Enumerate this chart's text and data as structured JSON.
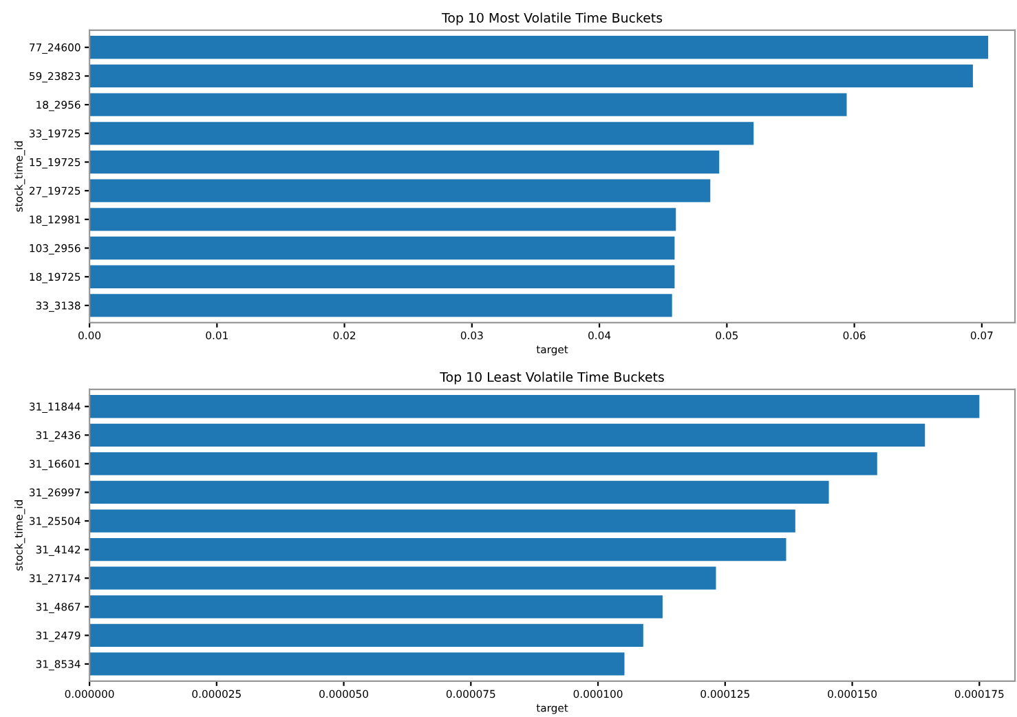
{
  "chart_data": [
    {
      "type": "bar",
      "orientation": "horizontal",
      "title": "Top 10 Most Volatile Time Buckets",
      "xlabel": "target",
      "ylabel": "stock_time_id",
      "categories": [
        "77_24600",
        "59_23823",
        "18_2956",
        "33_19725",
        "15_19725",
        "27_19725",
        "18_12981",
        "103_2956",
        "18_19725",
        "33_3138"
      ],
      "values": [
        0.0705,
        0.0693,
        0.0594,
        0.0521,
        0.0494,
        0.0487,
        0.046,
        0.0459,
        0.0459,
        0.0457
      ],
      "color": "#1f77b4",
      "xlim": [
        0,
        0.0726
      ],
      "xticks": [
        {
          "value": 0,
          "label": "0.00"
        },
        0.01,
        0.02,
        0.03,
        0.04,
        0.05,
        0.06,
        0.07
      ],
      "grid": false,
      "legend": false
    },
    {
      "type": "bar",
      "orientation": "horizontal",
      "title": "Top 10 Least Volatile Time Buckets",
      "xlabel": "target",
      "ylabel": "stock_time_id",
      "categories": [
        "31_11844",
        "31_2436",
        "31_16601",
        "31_26997",
        "31_25504",
        "31_4142",
        "31_27174",
        "31_4867",
        "31_2479",
        "31_8534"
      ],
      "values": [
        0.000175,
        0.0001643,
        0.0001549,
        0.0001454,
        0.0001388,
        0.000137,
        0.0001232,
        0.0001127,
        0.0001089,
        0.0001052
      ],
      "color": "#1f77b4",
      "xlim": [
        0,
        0.000182
      ],
      "xticks": [
        {
          "value": 0,
          "label": "0.000000"
        },
        {
          "value": 2.5e-05,
          "label": "0.000025"
        },
        {
          "value": 5e-05,
          "label": "0.000050"
        },
        {
          "value": 7.5e-05,
          "label": "0.000075"
        },
        {
          "value": 0.0001,
          "label": "0.000100"
        },
        {
          "value": 0.000125,
          "label": "0.000125"
        },
        {
          "value": 0.00015,
          "label": "0.000150"
        },
        {
          "value": 0.000175,
          "label": "0.000175"
        }
      ],
      "grid": false,
      "legend": false
    }
  ]
}
